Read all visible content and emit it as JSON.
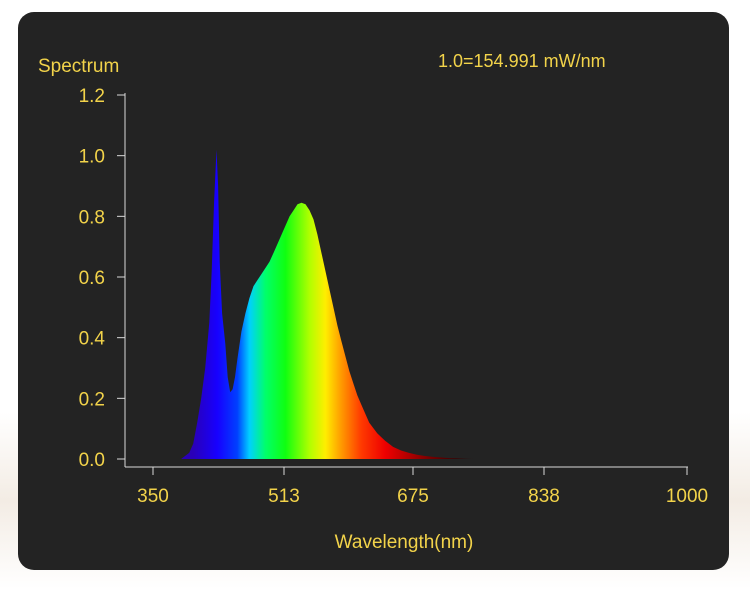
{
  "chart_data": {
    "type": "area",
    "ylabel": "Spectrum",
    "xlabel": "Wavelength(nm)",
    "annotation": "1.0=154.991 mW/nm",
    "xlim": [
      350,
      1000
    ],
    "ylim": [
      0,
      1.2
    ],
    "x_ticks": [
      350,
      513,
      675,
      838,
      1000
    ],
    "y_ticks": [
      "0.0",
      "0.2",
      "0.4",
      "0.6",
      "0.8",
      "1.0",
      "1.2"
    ],
    "series": [
      {
        "x": [
          385,
          395,
          400,
          405,
          410,
          415,
          420,
          423,
          426,
          429,
          431,
          433,
          436,
          440,
          443,
          446,
          449,
          452,
          455,
          460,
          465,
          470,
          475,
          480,
          485,
          490,
          495,
          500,
          505,
          510,
          515,
          520,
          525,
          530,
          535,
          540,
          545,
          550,
          555,
          560,
          565,
          570,
          575,
          580,
          585,
          590,
          595,
          600,
          605,
          610,
          615,
          620,
          630,
          640,
          650,
          660,
          670,
          680,
          690,
          700,
          710,
          720,
          730,
          740,
          750,
          760,
          775,
          790
        ],
        "y": [
          0.0,
          0.02,
          0.05,
          0.12,
          0.2,
          0.3,
          0.45,
          0.62,
          0.85,
          1.02,
          0.9,
          0.65,
          0.48,
          0.38,
          0.27,
          0.22,
          0.23,
          0.27,
          0.33,
          0.42,
          0.48,
          0.53,
          0.57,
          0.59,
          0.61,
          0.63,
          0.65,
          0.68,
          0.71,
          0.74,
          0.77,
          0.8,
          0.82,
          0.84,
          0.845,
          0.84,
          0.82,
          0.79,
          0.74,
          0.68,
          0.62,
          0.56,
          0.5,
          0.44,
          0.39,
          0.34,
          0.29,
          0.25,
          0.21,
          0.18,
          0.15,
          0.12,
          0.085,
          0.06,
          0.04,
          0.028,
          0.02,
          0.014,
          0.01,
          0.007,
          0.005,
          0.003,
          0.002,
          0.001,
          0.0,
          0.0,
          0.0,
          0.0
        ]
      }
    ]
  },
  "colors": {
    "text": "#f2d34a",
    "axis": "#d9d9d9",
    "panel": "#232323"
  }
}
